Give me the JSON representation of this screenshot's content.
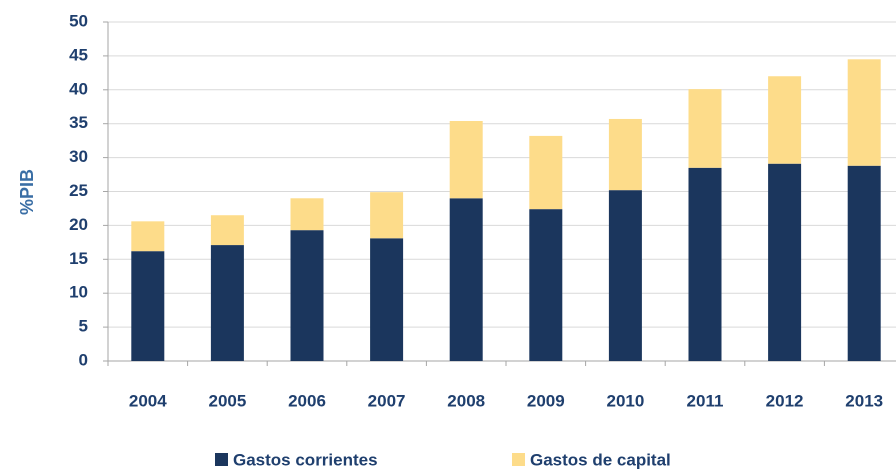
{
  "chart_data": {
    "type": "stacked_bar",
    "y_axis_label": "%PIB",
    "categories": [
      "2004",
      "2005",
      "2006",
      "2007",
      "2008",
      "2009",
      "2010",
      "2011",
      "2012",
      "2013"
    ],
    "series": [
      {
        "name": "Gastos corrientes",
        "color": "#1b365d",
        "values": [
          16.2,
          17.1,
          19.3,
          18.1,
          24.0,
          22.4,
          25.2,
          28.5,
          29.1,
          28.8
        ]
      },
      {
        "name": "Gastos de capital",
        "color": "#fddc8a",
        "values": [
          4.4,
          4.4,
          4.7,
          6.8,
          11.4,
          10.8,
          10.5,
          11.6,
          12.9,
          15.7
        ]
      }
    ],
    "ylim": [
      0,
      50
    ],
    "yticks": [
      0,
      5,
      10,
      15,
      20,
      25,
      30,
      35,
      40,
      45,
      50
    ],
    "grid": true
  }
}
